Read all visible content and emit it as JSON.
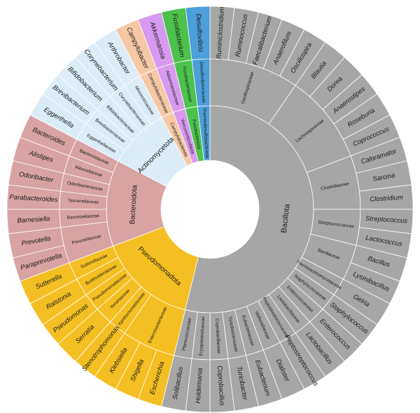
{
  "colors": {
    "Bacillota": "#a6a6a6",
    "Pseudomonadota": "#f4bf22",
    "Bacteroidota": "#d9a3a3",
    "Actinomycetota": "#dcecf7",
    "Campylobacterota": "#f6c8a5",
    "Verrucomicrobiota": "#d89af0",
    "Fusobacteriota": "#4cc24c",
    "Thermodesulfobacteriota": "#4c9fd9",
    "stroke": "#ffffff"
  },
  "phyla": [
    {
      "name": "Bacillota",
      "families": [
        {
          "name": "Oscillospiraceae",
          "genera": [
            "Ruminiclostridium",
            "Ruminococcus",
            "Faecalibacterium",
            "Anaerofilum",
            "Oscillospira"
          ]
        },
        {
          "name": "Lachnospiraceae",
          "genera": [
            "Blautia",
            "Dorea",
            "Anaerostipes",
            "Roseburia",
            "Coprococcus"
          ]
        },
        {
          "name": "Clostridiaceae",
          "genera": [
            "Caloramator",
            "Sarcina",
            "Clostridium"
          ]
        },
        {
          "name": "Streptococcaceae",
          "genera": [
            "Streptococcus",
            "Lactococcus"
          ]
        },
        {
          "name": "Bacillaceae",
          "genera": [
            "Bacillus",
            "Lysinibacillus"
          ]
        },
        {
          "name": "Thermoactinomycetaceae",
          "genera": [
            "Gelria"
          ]
        },
        {
          "name": "Staphylococcaceae",
          "genera": [
            "Staphylococcus"
          ]
        },
        {
          "name": "Enterococcaceae",
          "genera": [
            "Enterococcus"
          ]
        },
        {
          "name": "Lactobacillaceae",
          "genera": [
            "Lactobacillus"
          ]
        },
        {
          "name": "Peptostreptococcaceae",
          "genera": [
            "Peptostreptococcus"
          ]
        },
        {
          "name": "Veillonellaceae",
          "genera": [
            "Dialister"
          ]
        },
        {
          "name": "Eubacteriaceae",
          "genera": [
            "Eubacterium"
          ]
        },
        {
          "name": "Turicibacteraceae",
          "genera": [
            "Turicibacter"
          ]
        },
        {
          "name": "Coprobacillaceae",
          "genera": [
            "Coprobacillus"
          ]
        },
        {
          "name": "Erysipelotrichaceae",
          "genera": [
            "Holdemania"
          ]
        },
        {
          "name": "Planococcaceae",
          "genera": [
            "Solibacillus"
          ]
        }
      ]
    },
    {
      "name": "Pseudomonadota",
      "families": [
        {
          "name": "Enterobacteriaceae",
          "genera": [
            "Escherichia",
            "Shigella",
            "Klebsiella"
          ]
        },
        {
          "name": "Xanthomonadaceae",
          "genera": [
            "Stenotrophomonas"
          ]
        },
        {
          "name": "Yersiniaceae",
          "genera": [
            "Serratia"
          ]
        },
        {
          "name": "Pseudomonadaceae",
          "genera": [
            "Pseudomonas"
          ]
        },
        {
          "name": "Burkholderiaceae",
          "genera": [
            "Ralstonia"
          ]
        },
        {
          "name": "Sutterellaceae",
          "genera": [
            "Sutterella"
          ]
        }
      ]
    },
    {
      "name": "Bacteroidota",
      "families": [
        {
          "name": "Prevotellaceae",
          "genera": [
            "Paraprevotella",
            "Prevotella"
          ]
        },
        {
          "name": "Barnesiellaceae",
          "genera": [
            "Barnesiella"
          ]
        },
        {
          "name": "Tannerellaceae",
          "genera": [
            "Parabacteroides"
          ]
        },
        {
          "name": "Odoribacteraceae",
          "genera": [
            "Odoribacter"
          ]
        },
        {
          "name": "Rikenellaceae",
          "genera": [
            "Alistipes"
          ]
        },
        {
          "name": "Bacteroidaceae",
          "genera": [
            "Bacteroides"
          ]
        }
      ]
    },
    {
      "name": "Actinomycetota",
      "families": [
        {
          "name": "Eggerthellaceae",
          "genera": [
            "Eggerthella"
          ]
        },
        {
          "name": "Brevibacteriaceae",
          "genera": [
            "Brevibacterium"
          ]
        },
        {
          "name": "Bifidobacteriaceae",
          "genera": [
            "Bifidobacterium"
          ]
        },
        {
          "name": "Corynebacteriaceae",
          "genera": [
            "Corynebacterium"
          ]
        },
        {
          "name": "Micrococcaceae",
          "genera": [
            "Arthrobacter"
          ]
        }
      ]
    },
    {
      "name": "Campylobacterota",
      "families": [
        {
          "name": "Campylobacteraceae",
          "genera": [
            "Campylobacter"
          ]
        }
      ]
    },
    {
      "name": "Verrucomicrobiota",
      "families": [
        {
          "name": "Akkermansiaceae",
          "genera": [
            "Akkermansia"
          ]
        }
      ]
    },
    {
      "name": "Fusobacteriota",
      "families": [
        {
          "name": "Fusobacteriaceae",
          "genera": [
            "Fusobacterium"
          ]
        }
      ]
    },
    {
      "name": "Thermodesulfobacteriota",
      "families": [
        {
          "name": "Desulfovibrionaceae",
          "genera": [
            "Desulfovibrio"
          ]
        }
      ]
    }
  ]
}
